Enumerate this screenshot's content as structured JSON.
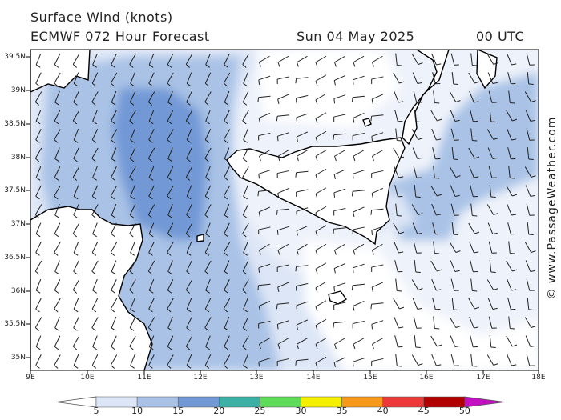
{
  "title": "Surface Wind (knots)",
  "model": "ECMWF 072 Hour Forecast",
  "date": "Sun 04 May 2025",
  "time": "00 UTC",
  "credit": "© www.PassageWeather.com",
  "lat_labels": [
    "39.5N",
    "39N",
    "38.5N",
    "38N",
    "37.5N",
    "37N",
    "36.5N",
    "36N",
    "35.5N",
    "35N"
  ],
  "lon_labels": [
    "9E",
    "10E",
    "11E",
    "12E",
    "13E",
    "14E",
    "15E",
    "16E",
    "17E",
    "18E"
  ],
  "colorbar": {
    "labels": [
      "5",
      "10",
      "15",
      "20",
      "25",
      "30",
      "35",
      "40",
      "45",
      "50"
    ],
    "colors": [
      "#dde6f6",
      "#a9c2e6",
      "#7299d6",
      "#3cb0a4",
      "#5fdc5a",
      "#f4f000",
      "#f79a1a",
      "#ec3838",
      "#b00000",
      "#c010c0"
    ]
  },
  "map_colors": {
    "land": "#ffffff",
    "coast": "#000000",
    "barb": "#222222"
  }
}
